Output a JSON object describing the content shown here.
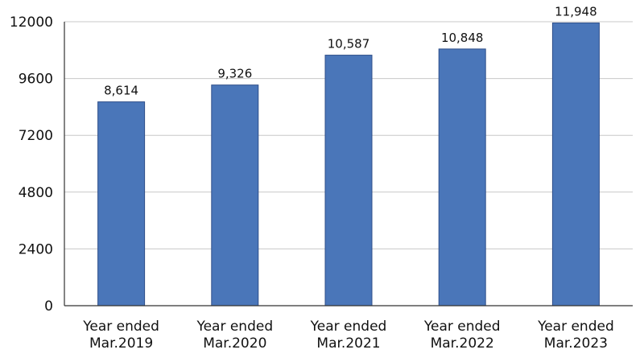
{
  "chart_data": {
    "type": "bar",
    "title": "",
    "xlabel": "",
    "ylabel": "",
    "categories": [
      [
        "Year ended",
        "Mar.2019"
      ],
      [
        "Year ended",
        "Mar.2020"
      ],
      [
        "Year ended",
        "Mar.2021"
      ],
      [
        "Year ended",
        "Mar.2022"
      ],
      [
        "Year ended",
        "Mar.2023"
      ]
    ],
    "values": [
      8614,
      9326,
      10587,
      10848,
      11948
    ],
    "data_labels": [
      "8,614",
      "9,326",
      "10,587",
      "10,848",
      "11,948"
    ],
    "ylim": [
      0,
      12000
    ],
    "yticks": [
      0,
      2400,
      4800,
      7200,
      9600,
      12000
    ],
    "ytick_labels": [
      "0",
      "2400",
      "4800",
      "7200",
      "9600",
      "12000"
    ],
    "grid": true,
    "legend": "none",
    "bar_color": "#4a76b9"
  }
}
